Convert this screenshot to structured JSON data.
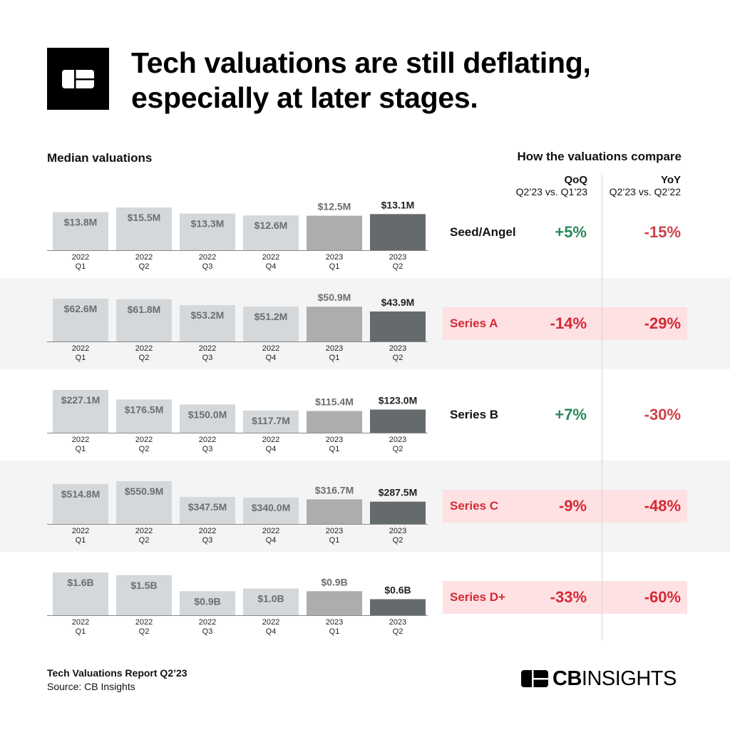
{
  "header": {
    "title_line1": "Tech valuations are still deflating,",
    "title_line2": "especially at later stages.",
    "logo": "CB Insights logo mark"
  },
  "left_heading": "Median valuations",
  "right_heading": "How the valuations compare",
  "columns": {
    "qoq": {
      "title": "QoQ",
      "subtitle": "Q2’23 vs. Q1’23"
    },
    "yoy": {
      "title": "YoY",
      "subtitle": "Q2’23 vs. Q2’22"
    }
  },
  "colors": {
    "bar_2022": "#d5d8da",
    "bar_2023_q1": "#acadaf",
    "bar_2023_q2": "#656a6d",
    "positive": "#2a8a5a",
    "negative_text": "#d0404a",
    "highlight_bg": "#fde1e3",
    "highlight_text": "#d42a36",
    "band_grey": "#f4f4f4"
  },
  "chart_data": {
    "type": "bar",
    "categories": [
      [
        "2022",
        "Q1"
      ],
      [
        "2022",
        "Q2"
      ],
      [
        "2022",
        "Q3"
      ],
      [
        "2022",
        "Q4"
      ],
      [
        "2023",
        "Q1"
      ],
      [
        "2023",
        "Q2"
      ]
    ],
    "panels": [
      {
        "stage": "Seed/Angel",
        "values": [
          13.8,
          15.5,
          13.3,
          12.6,
          12.5,
          13.1
        ],
        "unit": "M",
        "labels": [
          "$13.8M",
          "$15.5M",
          "$13.3M",
          "$12.6M",
          "$12.5M",
          "$13.1M"
        ],
        "qoq": "+5%",
        "yoy": "-15%",
        "qoq_sign": "positive",
        "yoy_sign": "negative",
        "highlight": false
      },
      {
        "stage": "Series A",
        "values": [
          62.6,
          61.8,
          53.2,
          51.2,
          50.9,
          43.9
        ],
        "unit": "M",
        "labels": [
          "$62.6M",
          "$61.8M",
          "$53.2M",
          "$51.2M",
          "$50.9M",
          "$43.9M"
        ],
        "qoq": "-14%",
        "yoy": "-29%",
        "qoq_sign": "negative",
        "yoy_sign": "negative",
        "highlight": true
      },
      {
        "stage": "Series B",
        "values": [
          227.1,
          176.5,
          150.0,
          117.7,
          115.4,
          123.0
        ],
        "unit": "M",
        "labels": [
          "$227.1M",
          "$176.5M",
          "$150.0M",
          "$117.7M",
          "$115.4M",
          "$123.0M"
        ],
        "qoq": "+7%",
        "yoy": "-30%",
        "qoq_sign": "positive",
        "yoy_sign": "negative",
        "highlight": false
      },
      {
        "stage": "Series C",
        "values": [
          514.8,
          550.9,
          347.5,
          340.0,
          316.7,
          287.5
        ],
        "unit": "M",
        "labels": [
          "$514.8M",
          "$550.9M",
          "$347.5M",
          "$340.0M",
          "$316.7M",
          "$287.5M"
        ],
        "qoq": "-9%",
        "yoy": "-48%",
        "qoq_sign": "negative",
        "yoy_sign": "negative",
        "highlight": true
      },
      {
        "stage": "Series D+",
        "values": [
          1.6,
          1.5,
          0.9,
          1.0,
          0.9,
          0.6
        ],
        "unit": "B",
        "labels": [
          "$1.6B",
          "$1.5B",
          "$0.9B",
          "$1.0B",
          "$0.9B",
          "$0.6B"
        ],
        "qoq": "-33%",
        "yoy": "-60%",
        "qoq_sign": "negative",
        "yoy_sign": "negative",
        "highlight": true
      }
    ]
  },
  "footer": {
    "report": "Tech Valuations Report Q2’23",
    "source": "Source: CB Insights",
    "brand_bold": "CB",
    "brand_light": "INSIGHTS"
  }
}
